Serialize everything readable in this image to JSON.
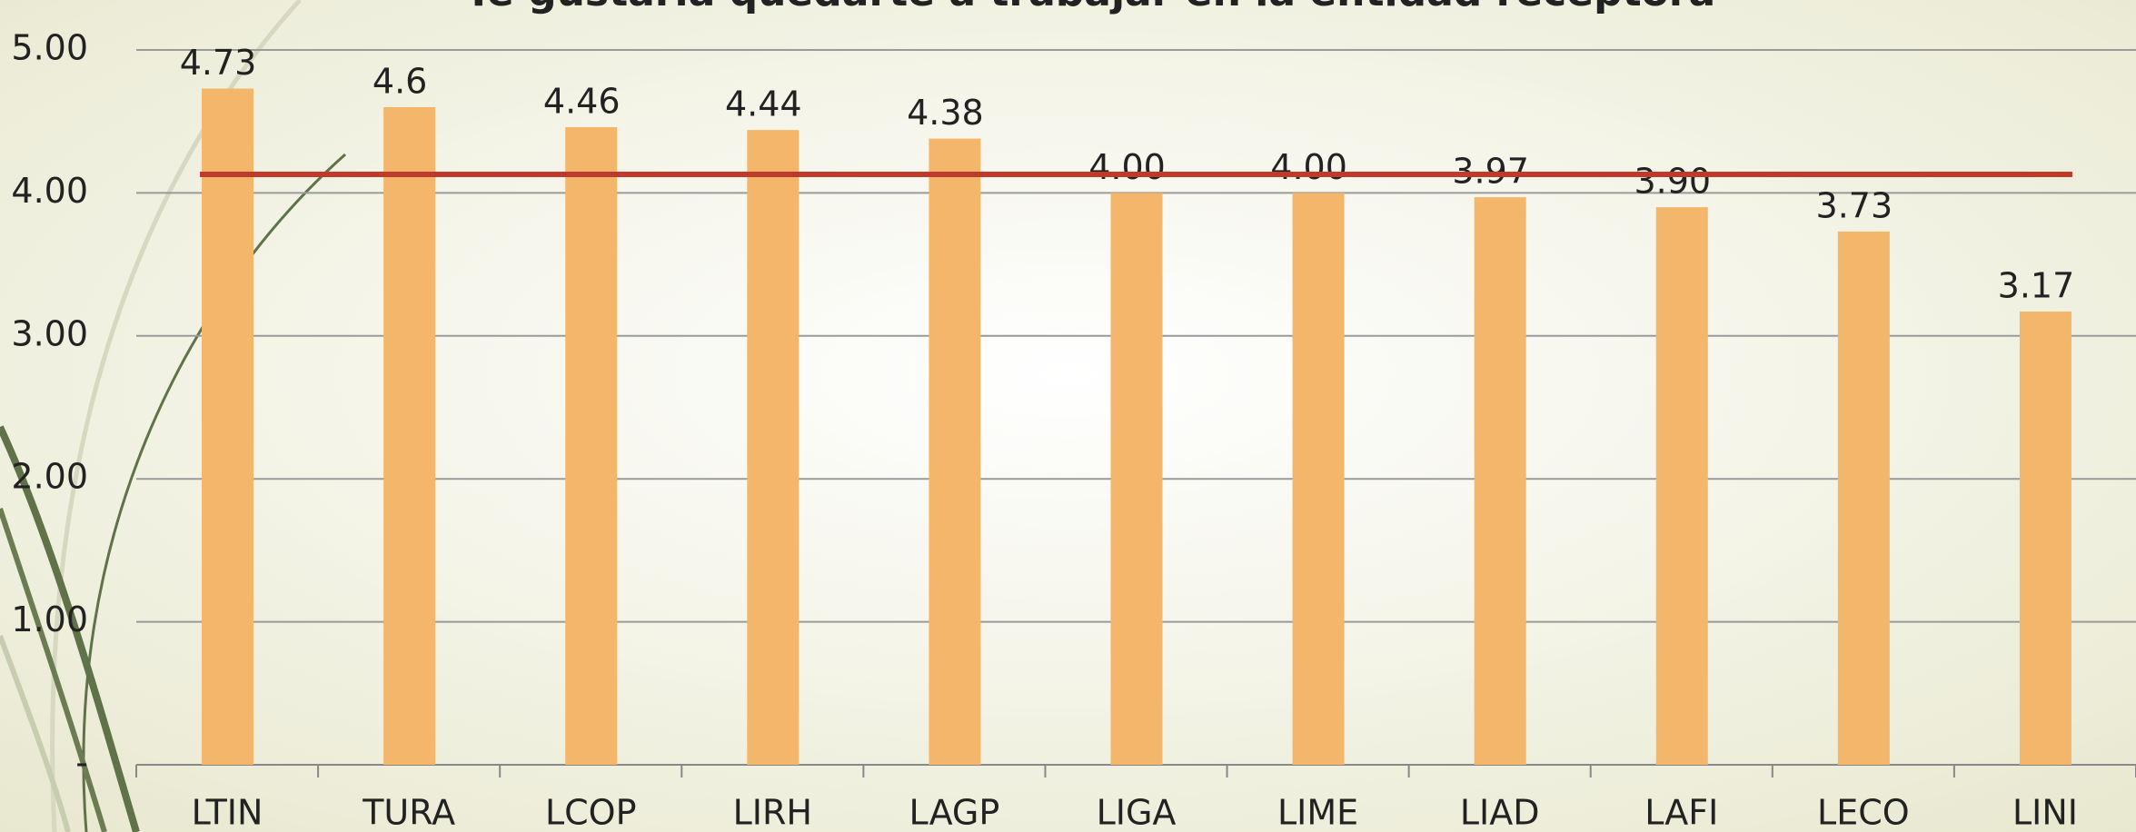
{
  "chart_data": {
    "type": "bar",
    "title": "Te gustaría quedarte a trabajar en la entidad receptora",
    "categories": [
      "LTIN",
      "TURA",
      "LCOP",
      "LIRH",
      "LAGP",
      "LIGA",
      "LIME",
      "LIAD",
      "LAFI",
      "LECO",
      "LINI"
    ],
    "values": [
      4.73,
      4.6,
      4.46,
      4.44,
      4.38,
      4.0,
      4.0,
      3.97,
      3.9,
      3.73,
      3.17
    ],
    "value_labels": [
      "4.73",
      "4.6",
      "4.46",
      "4.44",
      "4.38",
      "4.00",
      "4.00",
      "3.97",
      "3.90",
      "3.73",
      "3.17"
    ],
    "color": "#f4b66a",
    "ylim": [
      0,
      5
    ],
    "yticks": [
      {
        "value": 0,
        "label": "-"
      },
      {
        "value": 1,
        "label": "1.00"
      },
      {
        "value": 2,
        "label": "2.00"
      },
      {
        "value": 3,
        "label": "3.00"
      },
      {
        "value": 4,
        "label": "4.00"
      },
      {
        "value": 5,
        "label": "5.00"
      }
    ],
    "grid": true,
    "reference_line": {
      "value": 4.13,
      "color": "#c0392b"
    }
  }
}
